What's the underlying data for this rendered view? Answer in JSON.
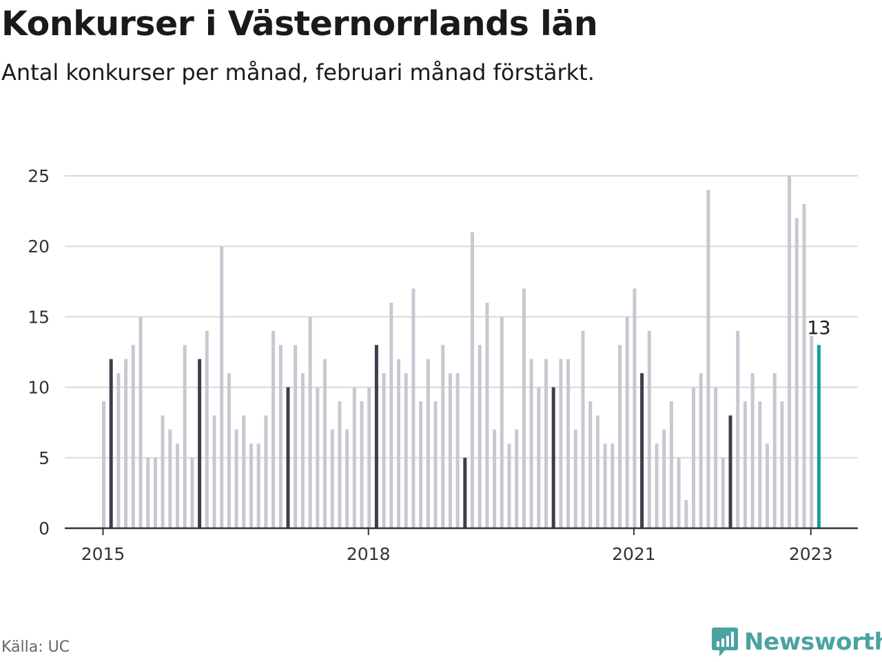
{
  "header": {
    "title": "Konkurser i Västernorrlands län",
    "subtitle": "Antal konkurser per månad, februari månad förstärkt."
  },
  "footer": {
    "source": "Källa: UC",
    "brand": "Newsworthy",
    "brand_icon": "newsworthy-logo-icon",
    "brand_color": "#4aa3a0"
  },
  "colors": {
    "bar": "#c8c8d2",
    "highlight_bar": "#3e3e4c",
    "latest_bar": "#1a9e96",
    "grid": "#d9d9d9",
    "axis": "#333333"
  },
  "chart_data": {
    "type": "bar",
    "title": "Konkurser i Västernorrlands län",
    "subtitle": "Antal konkurser per månad, februari månad förstärkt.",
    "ylim": [
      0,
      25
    ],
    "yticks": [
      0,
      5,
      10,
      15,
      20,
      25
    ],
    "grid": true,
    "start": "2015-01",
    "x_tick_labels": [
      "2015",
      "2018",
      "2021",
      "2023"
    ],
    "highlight": "February of each year",
    "latest_label": "13",
    "values": [
      9,
      12,
      11,
      12,
      13,
      15,
      5,
      5,
      8,
      7,
      6,
      13,
      5,
      12,
      14,
      8,
      20,
      11,
      7,
      8,
      6,
      6,
      8,
      14,
      13,
      10,
      13,
      11,
      15,
      10,
      12,
      7,
      9,
      7,
      10,
      9,
      10,
      13,
      11,
      16,
      12,
      11,
      17,
      9,
      12,
      9,
      13,
      11,
      11,
      5,
      21,
      13,
      16,
      7,
      15,
      6,
      7,
      17,
      12,
      10,
      12,
      10,
      12,
      12,
      7,
      14,
      9,
      8,
      6,
      6,
      13,
      15,
      17,
      11,
      14,
      6,
      7,
      9,
      5,
      2,
      10,
      11,
      24,
      10,
      5,
      8,
      14,
      9,
      11,
      9,
      6,
      11,
      9,
      25,
      22,
      23,
      14,
      13
    ]
  }
}
